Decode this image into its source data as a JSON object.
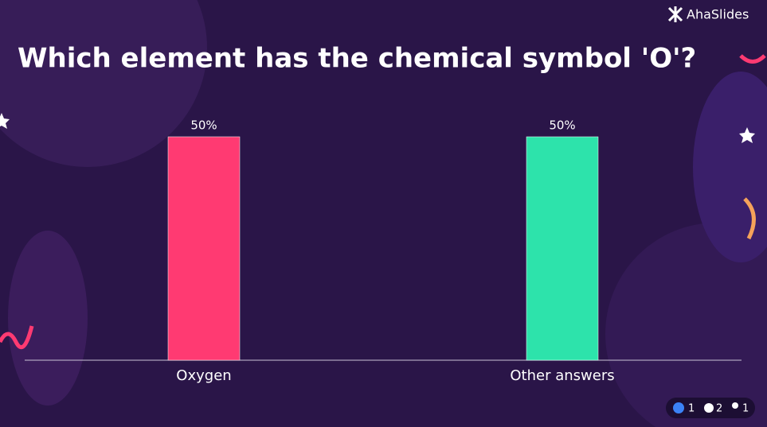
{
  "brand": "AhaSlides",
  "chart_data": {
    "type": "bar",
    "title": "Which element has the chemical symbol 'O'?",
    "categories": [
      "Oxygen",
      "Other answers"
    ],
    "values": [
      50,
      50
    ],
    "value_labels": [
      "50%",
      "50%"
    ],
    "colors": [
      "#ff3a72",
      "#2de3ab"
    ]
  },
  "footer": {
    "reactions": 1,
    "raised_hands": 2,
    "participants": 1
  }
}
